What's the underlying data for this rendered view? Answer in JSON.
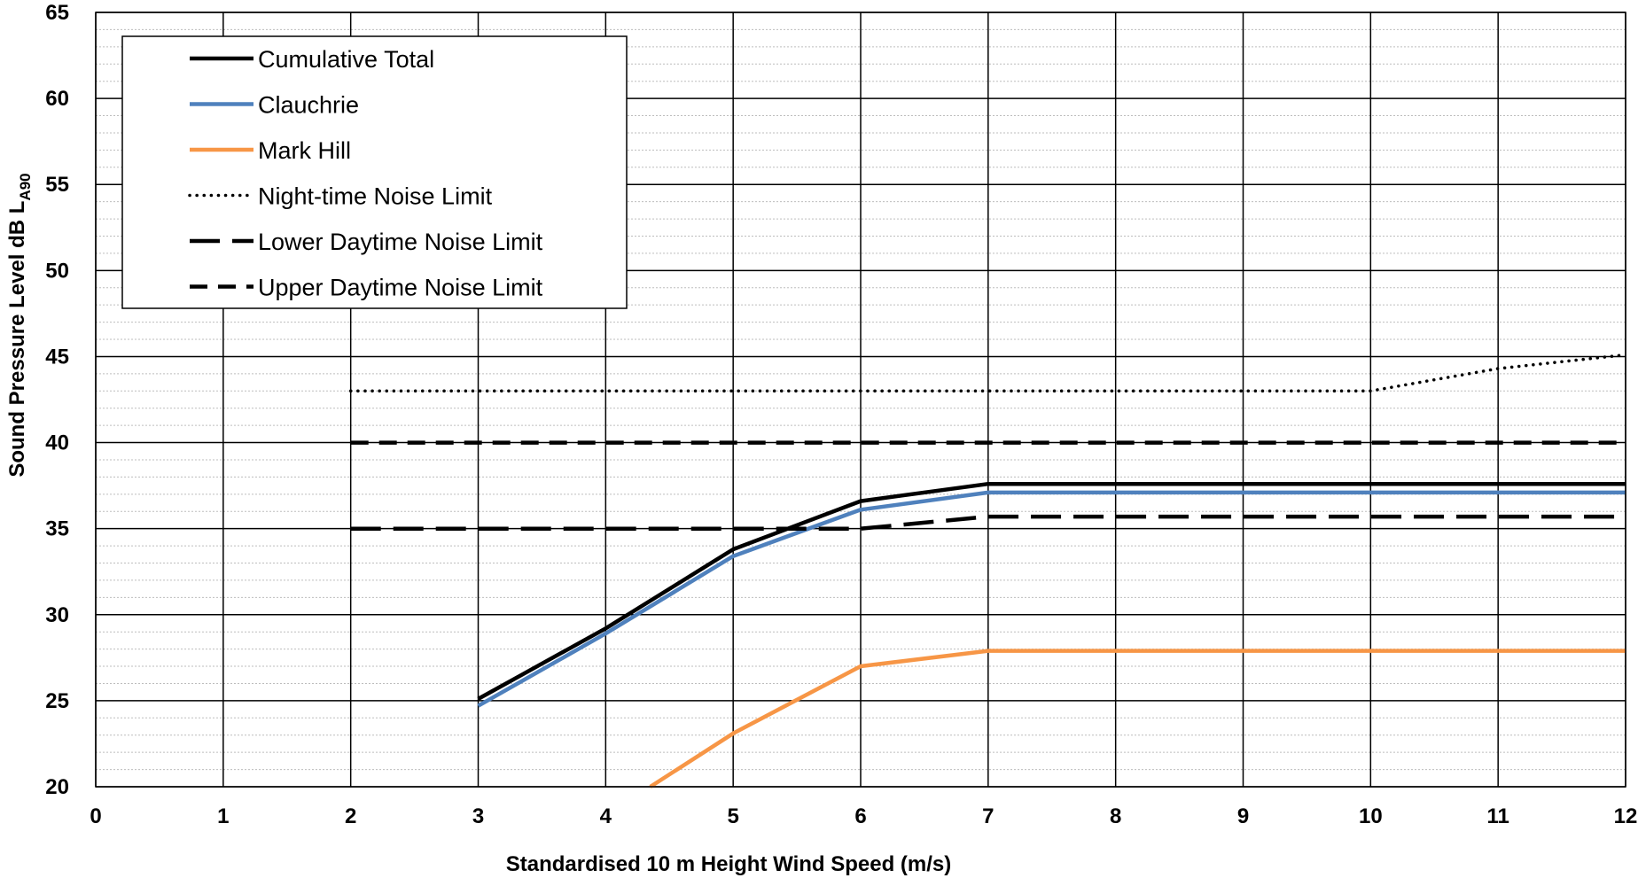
{
  "chart_data": {
    "type": "line",
    "title": "",
    "xlabel": "Standardised 10 m Height Wind Speed (m/s)",
    "ylabel_main": "Sound Pressure Level dB L",
    "ylabel_sub": "A90",
    "xlim": [
      0,
      12
    ],
    "ylim": [
      20,
      65
    ],
    "xticks": [
      "0",
      "1",
      "2",
      "3",
      "4",
      "5",
      "6",
      "7",
      "8",
      "9",
      "10",
      "11",
      "12"
    ],
    "yticks": [
      "20",
      "25",
      "30",
      "35",
      "40",
      "45",
      "50",
      "55",
      "60",
      "65"
    ],
    "x_major_step": 1,
    "y_major_step": 5,
    "y_minor_step": 1,
    "grid": true,
    "legend_position": "top-left",
    "series": [
      {
        "name": "Cumulative Total",
        "color": "#000000",
        "style": "solid",
        "x": [
          3,
          4,
          5,
          6,
          7,
          8,
          9,
          10,
          11,
          12
        ],
        "y": [
          25.1,
          29.2,
          33.8,
          36.6,
          37.6,
          37.6,
          37.6,
          37.6,
          37.6,
          37.6
        ]
      },
      {
        "name": "Clauchrie",
        "color": "#4f81bd",
        "style": "solid",
        "x": [
          3,
          4,
          5,
          6,
          7,
          8,
          9,
          10,
          11,
          12
        ],
        "y": [
          24.7,
          28.9,
          33.4,
          36.1,
          37.1,
          37.1,
          37.1,
          37.1,
          37.1,
          37.1
        ]
      },
      {
        "name": "Mark Hill",
        "color": "#f79646",
        "style": "solid",
        "x": [
          4.35,
          5,
          6,
          7,
          8,
          9,
          10,
          11,
          12
        ],
        "y": [
          20,
          23.1,
          27.0,
          27.9,
          27.9,
          27.9,
          27.9,
          27.9,
          27.9
        ]
      },
      {
        "name": "Night-time Noise Limit",
        "color": "#000000",
        "style": "dotted",
        "x": [
          2,
          3,
          4,
          5,
          6,
          7,
          8,
          9,
          10,
          11,
          12
        ],
        "y": [
          43,
          43,
          43,
          43,
          43,
          43,
          43,
          43,
          43,
          44.3,
          45.1
        ]
      },
      {
        "name": "Lower Daytime Noise Limit",
        "color": "#000000",
        "style": "longdash",
        "x": [
          2,
          3,
          4,
          5,
          6,
          7,
          8,
          9,
          10,
          11,
          12
        ],
        "y": [
          35,
          35,
          35,
          35,
          35,
          35.7,
          35.7,
          35.7,
          35.7,
          35.7,
          35.7
        ]
      },
      {
        "name": "Upper Daytime Noise Limit",
        "color": "#000000",
        "style": "dash",
        "x": [
          2,
          3,
          4,
          5,
          6,
          7,
          8,
          9,
          10,
          11,
          12
        ],
        "y": [
          40,
          40,
          40,
          40,
          40,
          40,
          40,
          40,
          40,
          40,
          40
        ]
      }
    ]
  }
}
